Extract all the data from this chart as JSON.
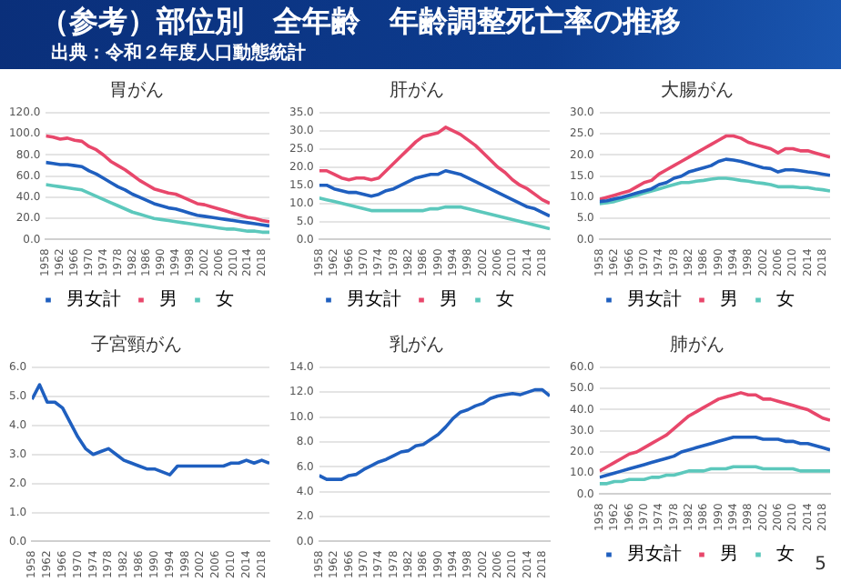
{
  "chart_data": [
    {
      "type": "other",
      "title": "（参考）部位別　全年齢　年齢調整死亡率の推移",
      "subtitle": "出典：令和２年度人口動態統計",
      "annotations": [
        "5"
      ]
    },
    {
      "type": "line",
      "title": "胃がん",
      "x": [
        1958,
        1960,
        1962,
        1964,
        1966,
        1968,
        1970,
        1972,
        1974,
        1976,
        1978,
        1980,
        1982,
        1984,
        1986,
        1988,
        1990,
        1992,
        1994,
        1996,
        1998,
        2000,
        2002,
        2004,
        2006,
        2008,
        2010,
        2012,
        2014,
        2016,
        2018,
        2020
      ],
      "xlim": [
        1958,
        2020
      ],
      "xticks": [
        1958,
        1962,
        1966,
        1970,
        1974,
        1978,
        1982,
        1986,
        1990,
        1994,
        1998,
        2002,
        2006,
        2010,
        2014,
        2018
      ],
      "ylim": [
        0,
        120
      ],
      "yticks": [
        {
          "value": 0,
          "label": "0.0"
        },
        {
          "value": 20,
          "label": "20.0"
        },
        {
          "value": 40,
          "label": "40.0"
        },
        {
          "value": 60,
          "label": "60.0"
        },
        {
          "value": 80,
          "label": "80.0"
        },
        {
          "value": 100,
          "label": "100.0"
        },
        {
          "value": 120,
          "label": "120.0"
        }
      ],
      "grid": "y",
      "legend": "bottom",
      "marker": "none",
      "series": [
        {
          "name": "男女計",
          "color": "#1f5fbf",
          "values": [
            73,
            72,
            71,
            71,
            70,
            69,
            65,
            62,
            58,
            54,
            50,
            47,
            43,
            40,
            37,
            34,
            32,
            30,
            29,
            27,
            25,
            23,
            22,
            21,
            20,
            19,
            18,
            17,
            16,
            15,
            14,
            13
          ]
        },
        {
          "name": "男",
          "color": "#e8476b",
          "values": [
            98,
            97,
            95,
            96,
            94,
            93,
            88,
            85,
            80,
            74,
            70,
            66,
            61,
            56,
            52,
            48,
            46,
            44,
            43,
            40,
            37,
            34,
            33,
            31,
            29,
            27,
            25,
            23,
            21,
            20,
            18,
            17
          ]
        },
        {
          "name": "女",
          "color": "#5cc8bc",
          "values": [
            52,
            51,
            50,
            49,
            48,
            47,
            44,
            41,
            38,
            35,
            32,
            29,
            26,
            24,
            22,
            20,
            19,
            18,
            17,
            16,
            15,
            14,
            13,
            12,
            11,
            10,
            10,
            9,
            8,
            8,
            7,
            7
          ]
        }
      ]
    },
    {
      "type": "line",
      "title": "肝がん",
      "x": [
        1958,
        1960,
        1962,
        1964,
        1966,
        1968,
        1970,
        1972,
        1974,
        1976,
        1978,
        1980,
        1982,
        1984,
        1986,
        1988,
        1990,
        1992,
        1994,
        1996,
        1998,
        2000,
        2002,
        2004,
        2006,
        2008,
        2010,
        2012,
        2014,
        2016,
        2018,
        2020
      ],
      "xlim": [
        1958,
        2020
      ],
      "xticks": [
        1958,
        1962,
        1966,
        1970,
        1974,
        1978,
        1982,
        1986,
        1990,
        1994,
        1998,
        2002,
        2006,
        2010,
        2014,
        2018
      ],
      "ylim": [
        0,
        35
      ],
      "yticks": [
        {
          "value": 0,
          "label": "0.0"
        },
        {
          "value": 5,
          "label": "5.0"
        },
        {
          "value": 10,
          "label": "10.0"
        },
        {
          "value": 15,
          "label": "15.0"
        },
        {
          "value": 20,
          "label": "20.0"
        },
        {
          "value": 25,
          "label": "25.0"
        },
        {
          "value": 30,
          "label": "30.0"
        },
        {
          "value": 35,
          "label": "35.0"
        }
      ],
      "grid": "y",
      "legend": "bottom",
      "marker": "none",
      "series": [
        {
          "name": "男女計",
          "color": "#1f5fbf",
          "values": [
            15,
            15,
            14,
            13.5,
            13,
            13,
            12.5,
            12,
            12.5,
            13.5,
            14,
            15,
            16,
            17,
            17.5,
            18,
            18,
            19,
            18.5,
            18,
            17,
            16,
            15,
            14,
            13,
            12,
            11,
            10,
            9,
            8.5,
            7.5,
            6.5
          ]
        },
        {
          "name": "男",
          "color": "#e8476b",
          "values": [
            19,
            19,
            18,
            17,
            16.5,
            17,
            17,
            16.5,
            17,
            19,
            21,
            23,
            25,
            27,
            28.5,
            29,
            29.5,
            31,
            30,
            29,
            27.5,
            26,
            24,
            22,
            20,
            18.5,
            16.5,
            15,
            14,
            12.5,
            11,
            10
          ]
        },
        {
          "name": "女",
          "color": "#5cc8bc",
          "values": [
            11.5,
            11,
            10.5,
            10,
            9.5,
            9,
            8.5,
            8,
            8,
            8,
            8,
            8,
            8,
            8,
            8,
            8.5,
            8.5,
            9,
            9,
            9,
            8.5,
            8,
            7.5,
            7,
            6.5,
            6,
            5.5,
            5,
            4.5,
            4,
            3.5,
            3
          ]
        }
      ]
    },
    {
      "type": "line",
      "title": "大腸がん",
      "x": [
        1958,
        1960,
        1962,
        1964,
        1966,
        1968,
        1970,
        1972,
        1974,
        1976,
        1978,
        1980,
        1982,
        1984,
        1986,
        1988,
        1990,
        1992,
        1994,
        1996,
        1998,
        2000,
        2002,
        2004,
        2006,
        2008,
        2010,
        2012,
        2014,
        2016,
        2018,
        2020
      ],
      "xlim": [
        1958,
        2020
      ],
      "xticks": [
        1958,
        1962,
        1966,
        1970,
        1974,
        1978,
        1982,
        1986,
        1990,
        1994,
        1998,
        2002,
        2006,
        2010,
        2014,
        2018
      ],
      "ylim": [
        0,
        30
      ],
      "yticks": [
        {
          "value": 0,
          "label": "0.0"
        },
        {
          "value": 5,
          "label": "5.0"
        },
        {
          "value": 10,
          "label": "10.0"
        },
        {
          "value": 15,
          "label": "15.0"
        },
        {
          "value": 20,
          "label": "20.0"
        },
        {
          "value": 25,
          "label": "25.0"
        },
        {
          "value": 30,
          "label": "30.0"
        }
      ],
      "grid": "y",
      "legend": "bottom",
      "marker": "none",
      "series": [
        {
          "name": "男女計",
          "color": "#1f5fbf",
          "values": [
            9,
            9.2,
            9.6,
            10,
            10.5,
            11,
            11.5,
            12,
            13,
            13.5,
            14.5,
            15,
            16,
            16.5,
            17,
            17.5,
            18.5,
            19,
            18.8,
            18.5,
            18,
            17.5,
            17,
            16.8,
            16,
            16.5,
            16.5,
            16.3,
            16,
            15.8,
            15.5,
            15.2
          ]
        },
        {
          "name": "男",
          "color": "#e8476b",
          "values": [
            9.5,
            10,
            10.5,
            11,
            11.5,
            12.5,
            13.5,
            14,
            15.5,
            16.5,
            17.5,
            18.5,
            19.5,
            20.5,
            21.5,
            22.5,
            23.5,
            24.5,
            24.5,
            24,
            23,
            22.5,
            22,
            21.5,
            20.5,
            21.5,
            21.5,
            21,
            21,
            20.5,
            20,
            19.5
          ]
        },
        {
          "name": "女",
          "color": "#5cc8bc",
          "values": [
            8.5,
            8.7,
            9,
            9.5,
            10,
            10.5,
            11,
            11.5,
            12,
            12.5,
            13,
            13.5,
            13.5,
            13.8,
            14,
            14.3,
            14.5,
            14.5,
            14.3,
            14,
            13.8,
            13.5,
            13.3,
            13,
            12.5,
            12.5,
            12.5,
            12.3,
            12.3,
            12,
            11.8,
            11.5
          ]
        }
      ]
    },
    {
      "type": "line",
      "title": "子宮頸がん",
      "x": [
        1958,
        1960,
        1962,
        1964,
        1966,
        1968,
        1970,
        1972,
        1974,
        1976,
        1978,
        1980,
        1982,
        1984,
        1986,
        1988,
        1990,
        1992,
        1994,
        1996,
        1998,
        2000,
        2002,
        2004,
        2006,
        2008,
        2010,
        2012,
        2014,
        2016,
        2018,
        2020
      ],
      "xlim": [
        1958,
        2020
      ],
      "xticks": [
        1958,
        1962,
        1966,
        1970,
        1974,
        1978,
        1982,
        1986,
        1990,
        1994,
        1998,
        2002,
        2006,
        2010,
        2014,
        2018
      ],
      "ylim": [
        0,
        6
      ],
      "yticks": [
        {
          "value": 0,
          "label": "0.0"
        },
        {
          "value": 1,
          "label": "1.0"
        },
        {
          "value": 2,
          "label": "2.0"
        },
        {
          "value": 3,
          "label": "3.0"
        },
        {
          "value": 4,
          "label": "4.0"
        },
        {
          "value": 5,
          "label": "5.0"
        },
        {
          "value": 6,
          "label": "6.0"
        }
      ],
      "grid": "y",
      "marker": "none",
      "color": "#1f5fbf",
      "values": [
        4.9,
        5.4,
        4.8,
        4.8,
        4.6,
        4.1,
        3.6,
        3.2,
        3.0,
        3.1,
        3.2,
        3.0,
        2.8,
        2.7,
        2.6,
        2.5,
        2.5,
        2.4,
        2.3,
        2.6,
        2.6,
        2.6,
        2.6,
        2.6,
        2.6,
        2.6,
        2.7,
        2.7,
        2.8,
        2.7,
        2.8,
        2.7
      ]
    },
    {
      "type": "line",
      "title": "乳がん",
      "x": [
        1958,
        1960,
        1962,
        1964,
        1966,
        1968,
        1970,
        1972,
        1974,
        1976,
        1978,
        1980,
        1982,
        1984,
        1986,
        1988,
        1990,
        1992,
        1994,
        1996,
        1998,
        2000,
        2002,
        2004,
        2006,
        2008,
        2010,
        2012,
        2014,
        2016,
        2018,
        2020
      ],
      "xlim": [
        1958,
        2020
      ],
      "xticks": [
        1958,
        1962,
        1966,
        1970,
        1974,
        1978,
        1982,
        1986,
        1990,
        1994,
        1998,
        2002,
        2006,
        2010,
        2014,
        2018
      ],
      "ylim": [
        0,
        14
      ],
      "yticks": [
        {
          "value": 0,
          "label": "0.0"
        },
        {
          "value": 2,
          "label": "2.0"
        },
        {
          "value": 4,
          "label": "4.0"
        },
        {
          "value": 6,
          "label": "6.0"
        },
        {
          "value": 8,
          "label": "8.0"
        },
        {
          "value": 10,
          "label": "10.0"
        },
        {
          "value": 12,
          "label": "12.0"
        },
        {
          "value": 14,
          "label": "14.0"
        }
      ],
      "grid": "y",
      "marker": "none",
      "color": "#1f5fbf",
      "values": [
        5.3,
        5.0,
        5.0,
        5.0,
        5.3,
        5.4,
        5.8,
        6.1,
        6.4,
        6.6,
        6.9,
        7.2,
        7.3,
        7.7,
        7.8,
        8.2,
        8.6,
        9.2,
        9.9,
        10.4,
        10.6,
        10.9,
        11.1,
        11.5,
        11.7,
        11.8,
        11.9,
        11.8,
        12.0,
        12.2,
        12.2,
        11.7
      ]
    },
    {
      "type": "line",
      "title": "肺がん",
      "x": [
        1958,
        1960,
        1962,
        1964,
        1966,
        1968,
        1970,
        1972,
        1974,
        1976,
        1978,
        1980,
        1982,
        1984,
        1986,
        1988,
        1990,
        1992,
        1994,
        1996,
        1998,
        2000,
        2002,
        2004,
        2006,
        2008,
        2010,
        2012,
        2014,
        2016,
        2018,
        2020
      ],
      "xlim": [
        1958,
        2020
      ],
      "xticks": [
        1958,
        1962,
        1966,
        1970,
        1974,
        1978,
        1982,
        1986,
        1990,
        1994,
        1998,
        2002,
        2006,
        2010,
        2014,
        2018
      ],
      "ylim": [
        0,
        60
      ],
      "yticks": [
        {
          "value": 0,
          "label": "0.0"
        },
        {
          "value": 10,
          "label": "10.0"
        },
        {
          "value": 20,
          "label": "20.0"
        },
        {
          "value": 30,
          "label": "30.0"
        },
        {
          "value": 40,
          "label": "40.0"
        },
        {
          "value": 50,
          "label": "50.0"
        },
        {
          "value": 60,
          "label": "60.0"
        }
      ],
      "grid": "y",
      "legend": "bottom",
      "marker": "none",
      "series": [
        {
          "name": "男女計",
          "color": "#1f5fbf",
          "values": [
            8,
            9,
            10,
            11,
            12,
            13,
            14,
            15,
            16,
            17,
            18,
            20,
            21,
            22,
            23,
            24,
            25,
            26,
            27,
            27,
            27,
            27,
            26,
            26,
            26,
            25,
            25,
            24,
            24,
            23,
            22,
            21
          ]
        },
        {
          "name": "男",
          "color": "#e8476b",
          "values": [
            11,
            13,
            15,
            17,
            19,
            20,
            22,
            24,
            26,
            28,
            31,
            34,
            37,
            39,
            41,
            43,
            45,
            46,
            47,
            48,
            47,
            47,
            45,
            45,
            44,
            43,
            42,
            41,
            40,
            38,
            36,
            35
          ]
        },
        {
          "name": "女",
          "color": "#5cc8bc",
          "values": [
            5,
            5,
            6,
            6,
            7,
            7,
            7,
            8,
            8,
            9,
            9,
            10,
            11,
            11,
            11,
            12,
            12,
            12,
            13,
            13,
            13,
            13,
            12,
            12,
            12,
            12,
            12,
            11,
            11,
            11,
            11,
            11
          ]
        }
      ]
    }
  ]
}
